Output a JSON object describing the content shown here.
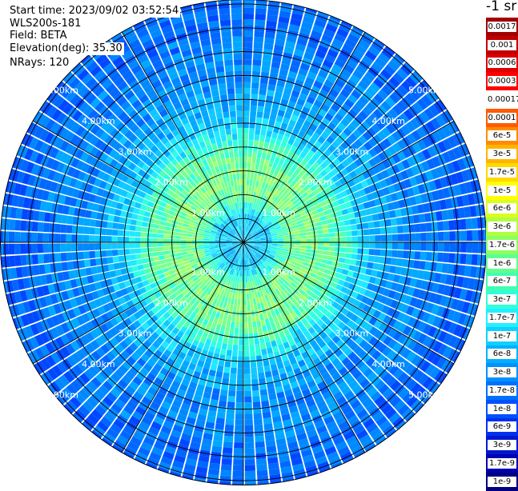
{
  "info": {
    "start_time": "Start time: 2023/09/02 03:52:54",
    "instrument": "WLS200s-181",
    "field": "Field: BETA",
    "elevation": "Elevation(deg): 35.30",
    "nrays": "NRays: 120"
  },
  "colorbar": {
    "unit_title": "-1 sr",
    "levels": [
      {
        "label": "0.0017",
        "color": "#a10000"
      },
      {
        "label": "0.001",
        "color": "#c00000"
      },
      {
        "label": "0.0006",
        "color": "#dd0000"
      },
      {
        "label": "0.0003",
        "color": "#ff0000"
      },
      {
        "label": "0.00017",
        "color": "#ffffff"
      },
      {
        "label": "0.0001",
        "color": "#ff5a00"
      },
      {
        "label": "6e-5",
        "color": "#ff8c00"
      },
      {
        "label": "3e-5",
        "color": "#ffb400"
      },
      {
        "label": "1.7e-5",
        "color": "#ffd800"
      },
      {
        "label": "1e-5",
        "color": "#ffff00"
      },
      {
        "label": "6e-6",
        "color": "#d8ff20"
      },
      {
        "label": "3e-6",
        "color": "#b0ff40"
      },
      {
        "label": "1.7e-6",
        "color": "#8cff60"
      },
      {
        "label": "1e-6",
        "color": "#60ff90"
      },
      {
        "label": "6e-7",
        "color": "#40ffb0"
      },
      {
        "label": "3e-7",
        "color": "#30ffd8"
      },
      {
        "label": "1.7e-7",
        "color": "#20f0ff"
      },
      {
        "label": "1e-7",
        "color": "#10d0ff"
      },
      {
        "label": "6e-8",
        "color": "#00b0ff"
      },
      {
        "label": "3e-8",
        "color": "#0090ff"
      },
      {
        "label": "1.7e-8",
        "color": "#0070ff"
      },
      {
        "label": "1e-8",
        "color": "#0050ff"
      },
      {
        "label": "6e-9",
        "color": "#0030f0"
      },
      {
        "label": "3e-9",
        "color": "#0018d0"
      },
      {
        "label": "1.7e-9",
        "color": "#0000b0"
      },
      {
        "label": "1e-9",
        "color": "#000080"
      }
    ]
  },
  "chart_data": {
    "type": "heatmap",
    "projection": "polar",
    "field": "BETA",
    "elevation_deg": 35.3,
    "nrays": 120,
    "range_ring_labels": [
      "1.00km",
      "2.00km",
      "3.00km",
      "4.00km",
      "5.00km"
    ],
    "range_rings_km": [
      1,
      2,
      3,
      4,
      5
    ],
    "max_range_km": 5.1,
    "azimuth_spokes_deg": [
      0,
      30,
      60,
      90,
      120,
      150,
      180,
      210,
      240,
      270,
      300,
      330
    ],
    "range_profile": [
      {
        "range_km": 0.0,
        "level": "1e-7"
      },
      {
        "range_km": 0.5,
        "level": "1e-7"
      },
      {
        "range_km": 1.0,
        "level": "1e-6"
      },
      {
        "range_km": 1.5,
        "level": "1e-6"
      },
      {
        "range_km": 2.0,
        "level": "6e-7"
      },
      {
        "range_km": 2.5,
        "level": "1e-7"
      },
      {
        "range_km": 3.0,
        "level": "6e-8"
      },
      {
        "range_km": 3.5,
        "level": "3e-8"
      },
      {
        "range_km": 4.0,
        "level": "3e-8"
      },
      {
        "range_km": 4.5,
        "level": "1.7e-8"
      },
      {
        "range_km": 5.0,
        "level": "1.7e-8"
      }
    ]
  }
}
